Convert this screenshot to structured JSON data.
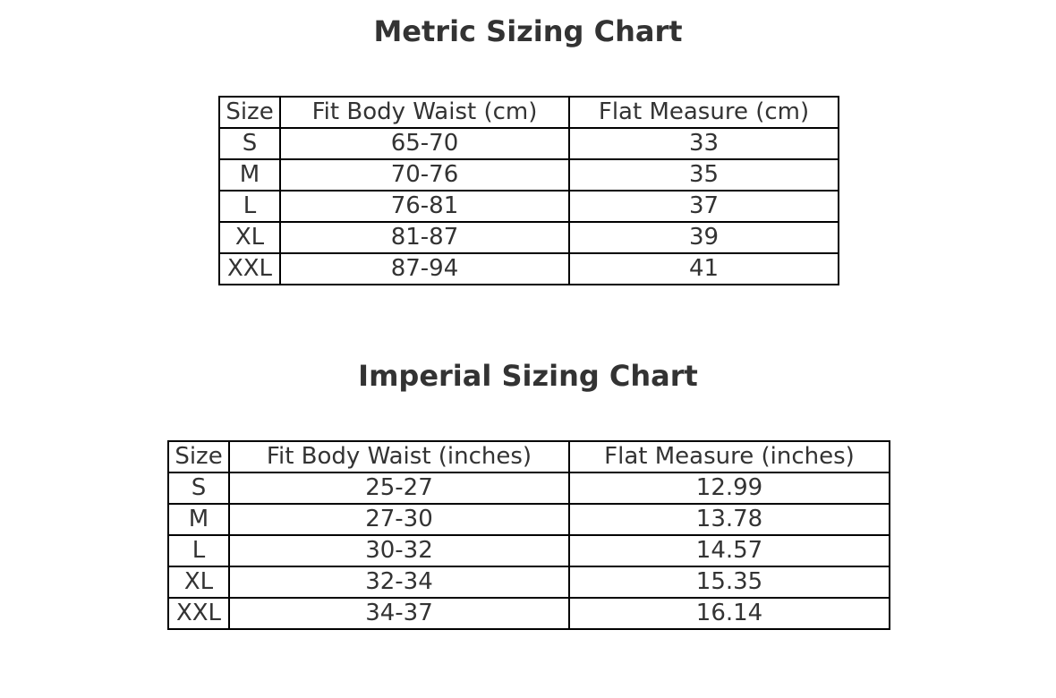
{
  "tables": [
    {
      "title": "Metric Sizing Chart",
      "header": [
        "Size",
        "Fit Body Waist (cm)",
        "Flat Measure (cm)"
      ],
      "rows": [
        [
          "S",
          "65-70",
          "33"
        ],
        [
          "M",
          "70-76",
          "35"
        ],
        [
          "L",
          "76-81",
          "37"
        ],
        [
          "XL",
          "81-87",
          "39"
        ],
        [
          "XXL",
          "87-94",
          "41"
        ]
      ]
    },
    {
      "title": "Imperial Sizing Chart",
      "header": [
        "Size",
        "Fit Body Waist (inches)",
        "Flat Measure (inches)"
      ],
      "rows": [
        [
          "S",
          "25-27",
          "12.99"
        ],
        [
          "M",
          "27-30",
          "13.78"
        ],
        [
          "L",
          "30-32",
          "14.57"
        ],
        [
          "XL",
          "32-34",
          "15.35"
        ],
        [
          "XXL",
          "34-37",
          "16.14"
        ]
      ]
    }
  ]
}
